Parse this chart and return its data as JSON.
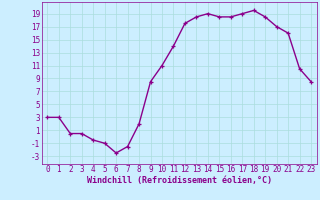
{
  "x": [
    0,
    1,
    2,
    3,
    4,
    5,
    6,
    7,
    8,
    9,
    10,
    11,
    12,
    13,
    14,
    15,
    16,
    17,
    18,
    19,
    20,
    21,
    22,
    23
  ],
  "y": [
    3,
    3,
    0.5,
    0.5,
    -0.5,
    -1,
    -2.5,
    -1.5,
    2,
    8.5,
    11,
    14,
    17.5,
    18.5,
    19,
    18.5,
    18.5,
    19,
    19.5,
    18.5,
    17,
    16,
    10.5,
    8.5
  ],
  "line_color": "#8B008B",
  "marker": "+",
  "marker_size": 3,
  "bg_color": "#cceeff",
  "grid_color": "#aadddd",
  "xlabel": "Windchill (Refroidissement éolien,°C)",
  "xlabel_fontsize": 6,
  "xtick_labels": [
    "0",
    "1",
    "2",
    "3",
    "4",
    "5",
    "6",
    "7",
    "8",
    "9",
    "10",
    "11",
    "12",
    "13",
    "14",
    "15",
    "16",
    "17",
    "18",
    "19",
    "20",
    "21",
    "22",
    "23"
  ],
  "ytick_values": [
    -3,
    -1,
    1,
    3,
    5,
    7,
    9,
    11,
    13,
    15,
    17,
    19
  ],
  "ylim": [
    -4.2,
    20.8
  ],
  "xlim": [
    -0.5,
    23.5
  ],
  "tick_fontsize": 5.5,
  "line_width": 1.0
}
